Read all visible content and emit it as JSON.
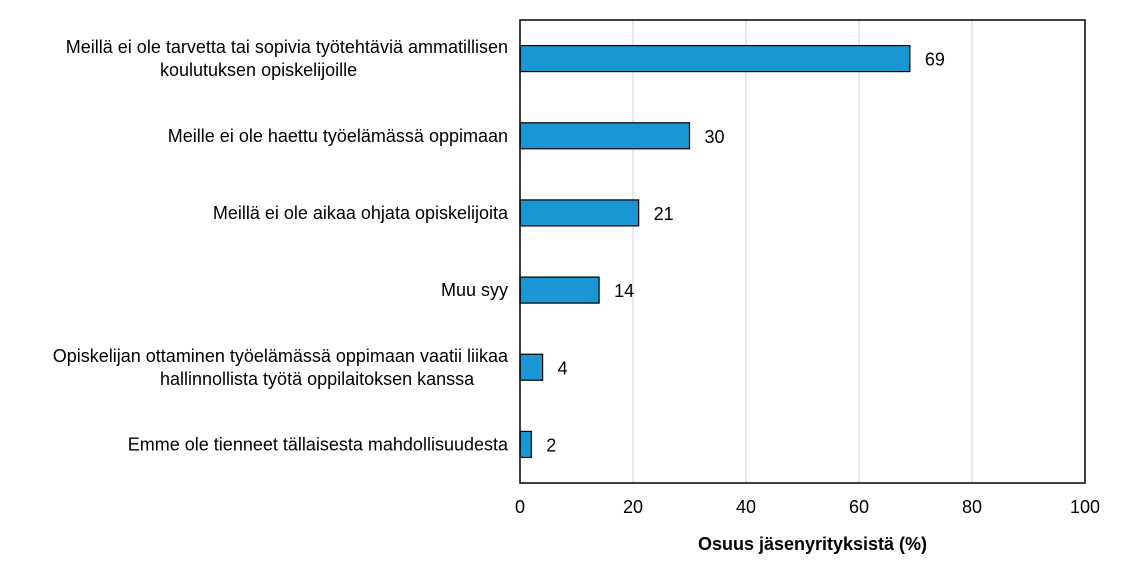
{
  "chart_data": {
    "type": "bar",
    "orientation": "horizontal",
    "categories": [
      [
        "Meillä ei ole tarvetta tai sopivia työtehtäviä ammatillisen",
        "koulutuksen opiskelijoille"
      ],
      [
        "Meille ei ole haettu työelämässä oppimaan"
      ],
      [
        "Meillä ei ole aikaa ohjata opiskelijoita"
      ],
      [
        "Muu syy"
      ],
      [
        "Opiskelijan ottaminen työelämässä oppimaan vaatii liikaa",
        "hallinnollista työtä oppilaitoksen kanssa"
      ],
      [
        "Emme ole tienneet tällaisesta mahdollisuudesta"
      ]
    ],
    "values": [
      69,
      30,
      21,
      14,
      4,
      2
    ],
    "data_labels": [
      "69",
      "30",
      "21",
      "14",
      "4",
      "2"
    ],
    "xlabel": "Osuus jäsenyrityksistä (%)",
    "ylabel": "",
    "xlim": [
      0,
      100
    ],
    "xticks": [
      0,
      20,
      40,
      60,
      80,
      100
    ],
    "xtick_labels": [
      "0",
      "20",
      "40",
      "60",
      "80",
      "100"
    ],
    "grid": "vertical",
    "legend": "none",
    "colors": {
      "bar": "#1a96d4",
      "bar_edge": "#000000",
      "grid": "#d9d9d9",
      "frame": "#000000"
    }
  }
}
